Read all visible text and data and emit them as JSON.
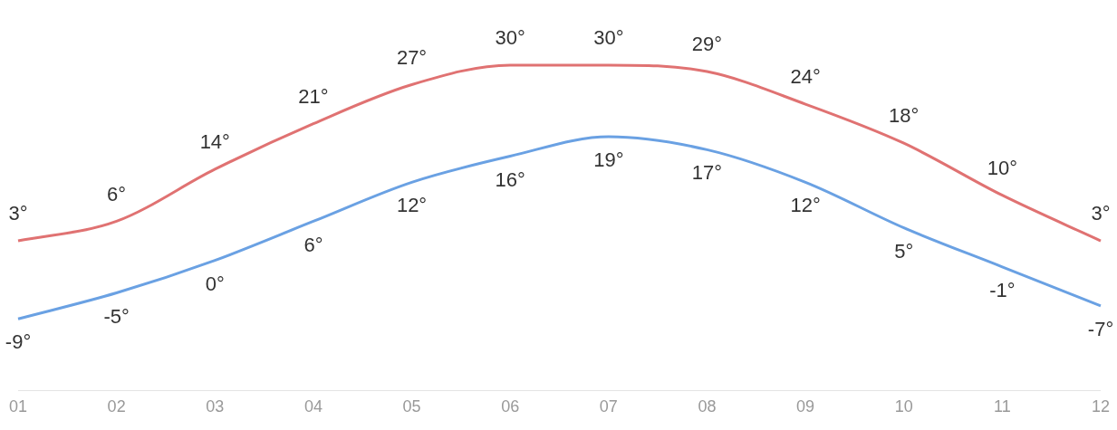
{
  "chart_data": {
    "type": "line",
    "categories": [
      "01",
      "02",
      "03",
      "04",
      "05",
      "06",
      "07",
      "08",
      "09",
      "10",
      "11",
      "12"
    ],
    "series": [
      {
        "color": "#e07272",
        "values": [
          3,
          6,
          14,
          21,
          27,
          30,
          30,
          29,
          24,
          18,
          10,
          3
        ],
        "value_labels": [
          "3°",
          "6°",
          "14°",
          "21°",
          "27°",
          "30°",
          "30°",
          "29°",
          "24°",
          "18°",
          "10°",
          "3°"
        ]
      },
      {
        "color": "#6aa1e3",
        "values": [
          -9,
          -5,
          0,
          6,
          12,
          16,
          19,
          17,
          12,
          5,
          -1,
          -7
        ],
        "value_labels": [
          "-9°",
          "-5°",
          "0°",
          "6°",
          "12°",
          "16°",
          "19°",
          "17°",
          "12°",
          "5°",
          "-1°",
          "-7°"
        ]
      }
    ],
    "tick_labels": "x",
    "grid": false,
    "legend": false,
    "marker": "none",
    "line_style": "solid"
  }
}
